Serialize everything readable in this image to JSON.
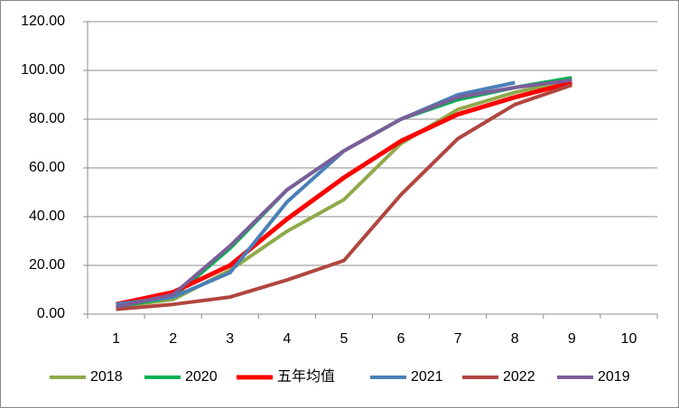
{
  "chart_data": {
    "type": "line",
    "categories": [
      "1",
      "2",
      "3",
      "4",
      "5",
      "6",
      "7",
      "8",
      "9",
      "10"
    ],
    "series": [
      {
        "name": "2018",
        "color": "#8faa4a",
        "values": [
          3,
          6,
          18,
          34,
          47,
          70,
          84,
          91,
          96,
          null
        ]
      },
      {
        "name": "2020",
        "color": "#00b050",
        "values": [
          3,
          7,
          27,
          51,
          67,
          80,
          88,
          93,
          97,
          null
        ]
      },
      {
        "name": "五年均值",
        "color": "#ff0000",
        "values": [
          4,
          9,
          20,
          39,
          56,
          71,
          82,
          89,
          95,
          null
        ]
      },
      {
        "name": "2021",
        "color": "#4a7fb8",
        "values": [
          4,
          7,
          17,
          46,
          67,
          80,
          90,
          95,
          null,
          null
        ]
      },
      {
        "name": "2022",
        "color": "#b0463f",
        "values": [
          2,
          4,
          7,
          14,
          22,
          49,
          72,
          86,
          94,
          null
        ]
      },
      {
        "name": "2019",
        "color": "#7b5e99",
        "values": [
          3,
          8,
          28,
          51,
          67,
          80,
          89,
          93,
          96,
          null
        ]
      }
    ],
    "ylim": [
      0,
      120
    ],
    "yticks": [
      {
        "value": 0,
        "label": "0.00"
      },
      {
        "value": 20,
        "label": "20.00"
      },
      {
        "value": 40,
        "label": "40.00"
      },
      {
        "value": 60,
        "label": "60.00"
      },
      {
        "value": 80,
        "label": "80.00"
      },
      {
        "value": 100,
        "label": "100.00"
      },
      {
        "value": 120,
        "label": "120.00"
      }
    ],
    "grid": true,
    "legend": "bottom"
  }
}
